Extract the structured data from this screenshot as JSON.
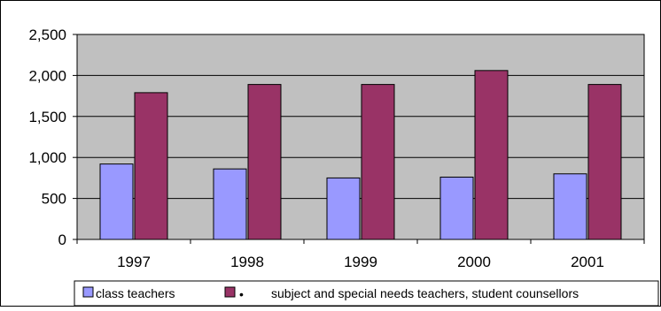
{
  "chart_data": {
    "type": "bar",
    "title": "",
    "xlabel": "",
    "ylabel": "",
    "categories": [
      "1997",
      "1998",
      "1999",
      "2000",
      "2001"
    ],
    "ylim": [
      0,
      2500
    ],
    "yticks": [
      0,
      500,
      1000,
      1500,
      2000,
      2500
    ],
    "ytick_labels": [
      "0",
      "500",
      "1,000",
      "1,500",
      "2,000",
      "2,500"
    ],
    "grid": true,
    "legend_position": "bottom",
    "series": [
      {
        "name": "class teachers",
        "color": "#9999ff",
        "values": [
          920,
          860,
          750,
          760,
          800
        ]
      },
      {
        "name": "subject and special needs teachers, student counsellors",
        "legend_prefix": "•",
        "color": "#993366",
        "values": [
          1790,
          1890,
          1890,
          2060,
          1890
        ]
      }
    ],
    "colors": {
      "plot_background": "#c0c0c0",
      "gridline": "#000000",
      "border": "#000000"
    }
  }
}
